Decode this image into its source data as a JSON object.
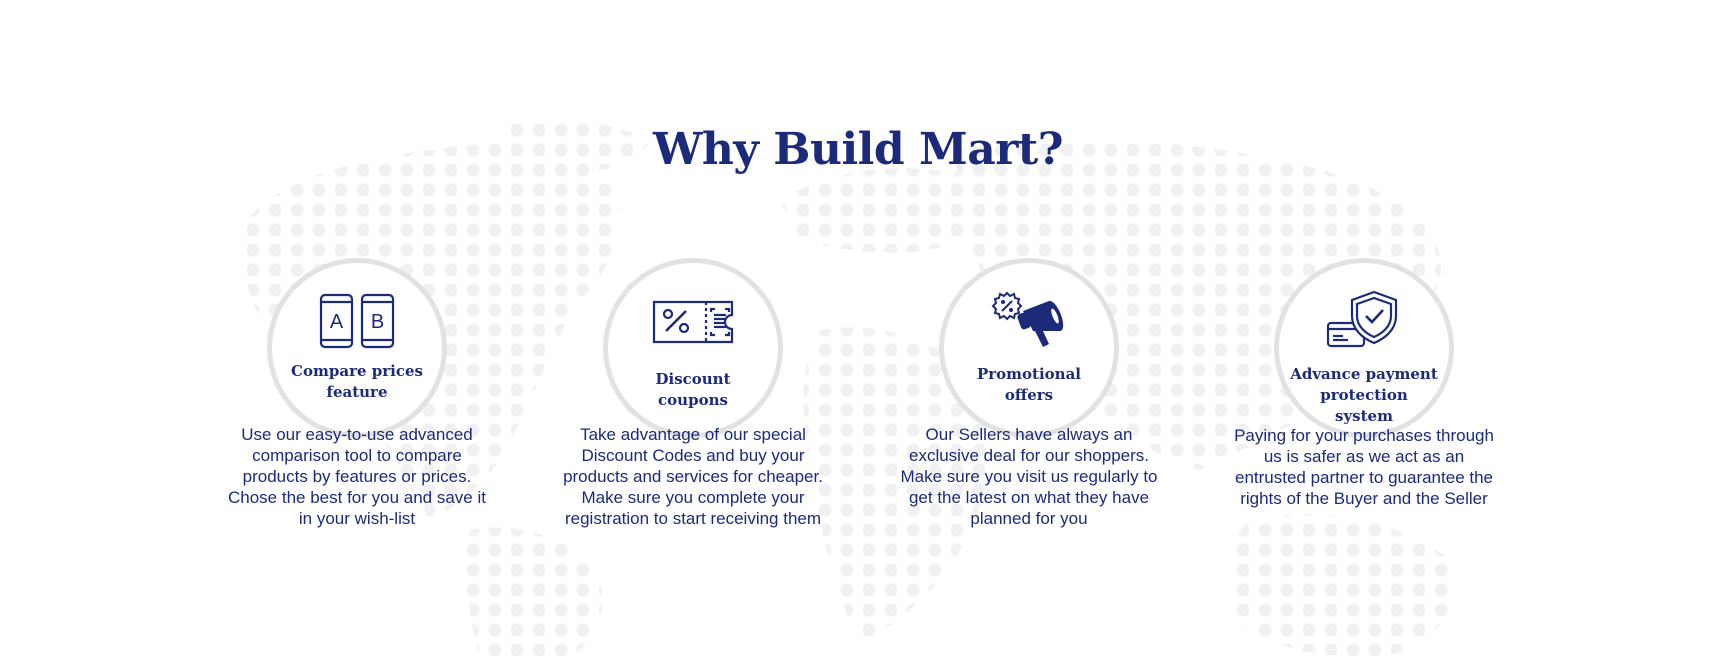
{
  "title": "Why Build Mart?",
  "features": [
    {
      "icon": "ab-compare-icon",
      "label": "Compare prices feature",
      "description": "Use our easy-to-use advanced comparison tool to compare products by features or prices. Chose the best for you and save it in your wish-list"
    },
    {
      "icon": "coupon-ticket-icon",
      "label": "Discount coupons",
      "description": "Take advantage of our special Discount Codes and buy your products and services for cheaper. Make sure you complete your registration to start receiving them"
    },
    {
      "icon": "megaphone-icon",
      "label": "Promotional offers",
      "description": "Our Sellers have always an exclusive deal for our shoppers. Make sure you visit us regularly to get the latest on what they have planned for you"
    },
    {
      "icon": "shield-card-icon",
      "label": "Advance payment protection system",
      "description": "Paying for your purchases through us is safer as we act as an entrusted partner to guarantee the rights of the Buyer and the Seller"
    }
  ],
  "colors": {
    "primary": "#1c2a7a",
    "circle_border": "#e2e2e2",
    "map_dots": "#f1f1f3"
  }
}
